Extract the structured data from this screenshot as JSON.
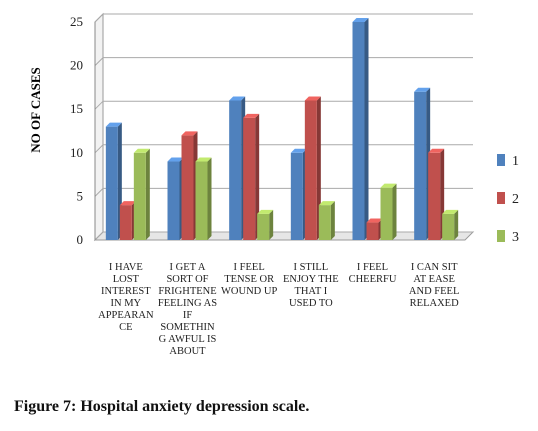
{
  "chart_data": {
    "type": "bar",
    "title": "Figure 7: Hospital anxiety depression scale.",
    "y_label": "NO OF CASES",
    "categories": [
      "I HAVE LOST INTEREST IN MY APPEARANCE",
      "I GET A SORT OF FRIGHTENE FEELING AS IF SOMETHIN G AWFUL IS ABOUT",
      "I FEEL TENSE OR WOUND UP",
      "I STILL ENJOY THE THAT I USED TO",
      "I FEEL CHEERFU",
      "I CAN SIT AT EASE AND FEEL RELAXED"
    ],
    "series": [
      {
        "name": "1",
        "color": "#4f81bd",
        "values": [
          13,
          9,
          16,
          10,
          25,
          17
        ]
      },
      {
        "name": "2",
        "color": "#c0504d",
        "values": [
          4,
          12,
          14,
          16,
          2,
          10
        ]
      },
      {
        "name": "3",
        "color": "#9bbb59",
        "values": [
          10,
          9,
          3,
          4,
          6,
          3
        ]
      }
    ],
    "ylim": [
      0,
      25
    ],
    "yticks": [
      0,
      5,
      10,
      15,
      20,
      25
    ],
    "grid": true,
    "legend": "right"
  }
}
